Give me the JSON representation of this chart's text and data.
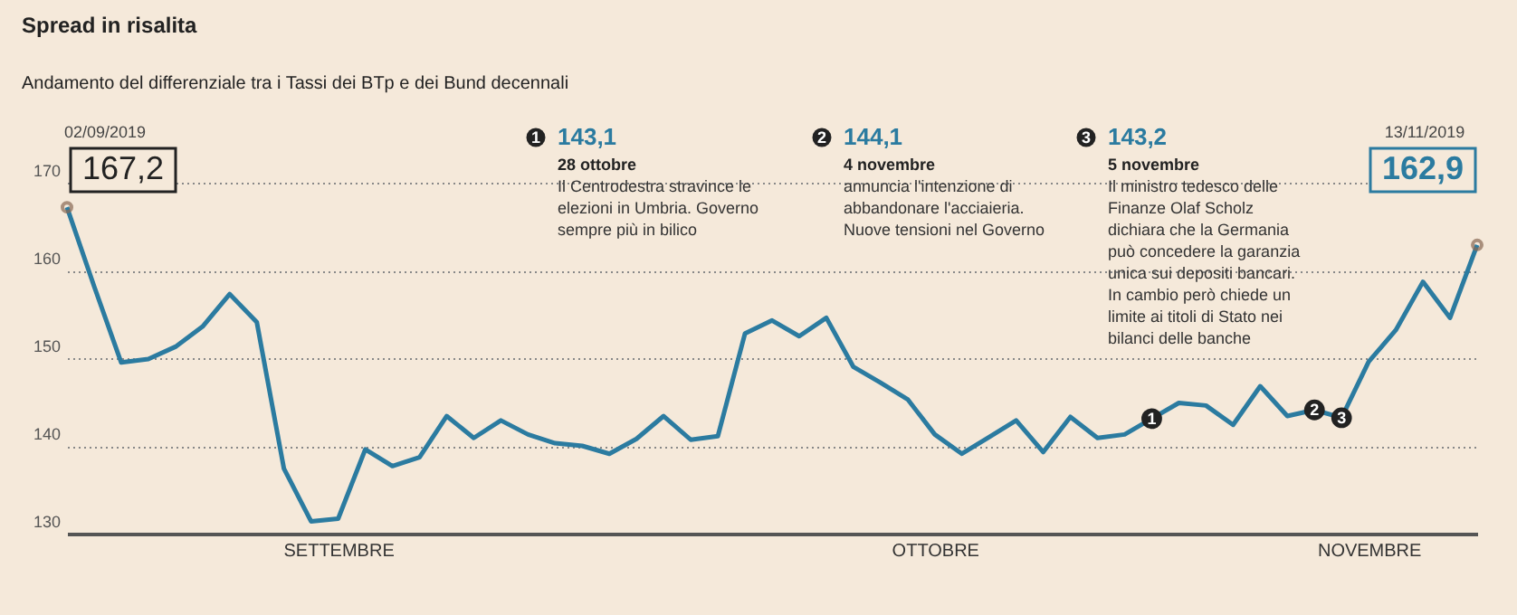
{
  "chart_data": {
    "type": "line",
    "title": "Spread in risalita",
    "subtitle": "Andamento del differenziale tra i Tassi dei BTp e dei Bund decennali",
    "categories": [
      null,
      null,
      null,
      null,
      null,
      null,
      null,
      null,
      null,
      null,
      "SETTEMBRE",
      null,
      null,
      null,
      null,
      null,
      null,
      null,
      null,
      null,
      null,
      null,
      null,
      null,
      null,
      null,
      null,
      null,
      null,
      null,
      null,
      null,
      "OTTOBRE",
      null,
      null,
      null,
      null,
      null,
      null,
      null,
      null,
      null,
      null,
      null,
      null,
      null,
      null,
      null,
      "NOVEMBRE",
      null,
      null,
      null,
      null
    ],
    "series": [
      {
        "color": "#2b7ba0",
        "values": [
          167.2,
          158.2,
          149.5,
          149.9,
          151.3,
          153.6,
          157.3,
          154.1,
          137.4,
          131.4,
          131.7,
          139.6,
          137.7,
          138.7,
          143.4,
          140.9,
          142.9,
          141.3,
          140.3,
          140.0,
          139.1,
          140.8,
          143.4,
          140.7,
          141.1,
          152.8,
          154.3,
          152.5,
          154.6,
          149.0,
          147.2,
          145.3,
          141.3,
          139.1,
          141.0,
          142.9,
          139.3,
          143.3,
          140.9,
          141.3,
          143.1,
          144.9,
          144.6,
          142.4,
          146.8,
          143.4,
          144.1,
          143.2,
          149.6,
          153.2,
          158.7,
          154.6,
          162.9
        ],
        "value_labels": [
          "167,2",
          null,
          null,
          null,
          null,
          null,
          null,
          null,
          null,
          null,
          null,
          null,
          null,
          null,
          null,
          null,
          null,
          null,
          null,
          null,
          null,
          null,
          null,
          null,
          null,
          null,
          null,
          null,
          null,
          null,
          null,
          null,
          null,
          null,
          null,
          null,
          null,
          null,
          null,
          null,
          null,
          null,
          null,
          null,
          null,
          null,
          null,
          null,
          null,
          null,
          null,
          null,
          "162,9"
        ]
      }
    ],
    "ylim": [
      130,
      170
    ],
    "yticks": [
      130,
      140,
      150,
      160,
      170
    ],
    "grid": "y",
    "marker": "none",
    "line_style": "solid",
    "annotations": [
      {
        "text": "1",
        "y": 143.1
      },
      {
        "text": "2",
        "y": 144.1
      },
      {
        "text": "3",
        "y": 143.2
      },
      "02/09/2019",
      "13/11/2019",
      "143,1",
      "28 ottobre",
      "Il Centrodestra stravince le\nelezioni in Umbria. Governo\nsempre più in bilico",
      "144,1",
      "4 novembre",
      "annuncia l'intenzione di\nabbandonare l'acciaieria.\nNuove tensioni nel Governo",
      "143,2",
      "5 novembre",
      "Il ministro tedesco delle\nFinanze Olaf Scholz\ndichiara che la Germania\npuò concedere la garanzia\nunica sui depositi bancari.\nIn cambio però chiede un\nlimite ai titoli di Stato nei\nbilanci delle banche"
    ]
  }
}
